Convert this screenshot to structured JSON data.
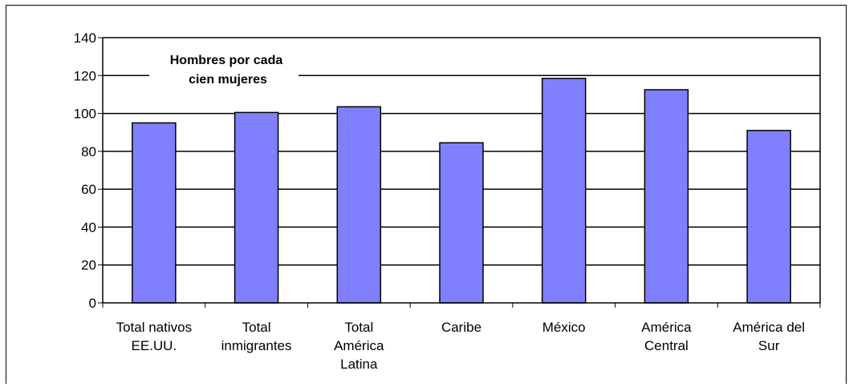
{
  "chart_data": {
    "type": "bar",
    "title_lines": [
      "Hombres por cada",
      "cien mujeres"
    ],
    "categories": [
      [
        "Total nativos",
        "EE.UU."
      ],
      [
        "Total",
        "inmigrantes"
      ],
      [
        "Total",
        "América",
        "Latina"
      ],
      [
        "Caribe"
      ],
      [
        "México"
      ],
      [
        "América",
        "Central"
      ],
      [
        "América del",
        "Sur"
      ]
    ],
    "values": [
      95,
      100.5,
      103.5,
      84.5,
      118.5,
      112.5,
      91
    ],
    "ylim": [
      0,
      140
    ],
    "yticks": [
      "0",
      "20",
      "40",
      "60",
      "80",
      "100",
      "120",
      "140"
    ],
    "grid": true,
    "bar_color": "#8080ff"
  }
}
